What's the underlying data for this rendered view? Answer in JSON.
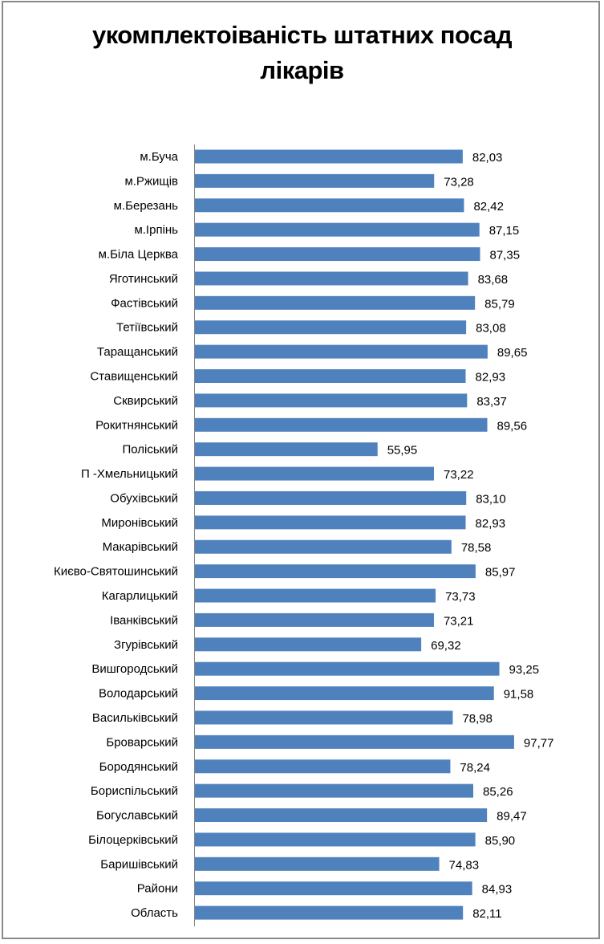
{
  "chart_data": {
    "type": "bar",
    "orientation": "horizontal",
    "title": "укомплектоіваність штатних посад лікарів",
    "title_lines": [
      "укомплектоіваність штатних посад",
      "лікарів"
    ],
    "xlabel": "",
    "ylabel": "",
    "xlim": [
      0,
      100
    ],
    "grid": false,
    "legend": "none",
    "bar_color": "#4f81bd",
    "categories": [
      "м.Буча",
      "м.Ржищів",
      "м.Березань",
      "м.Ірпінь",
      "м.Біла Церква",
      "Яготинський",
      "Фастівський",
      "Тетіївський",
      "Таращанський",
      "Ставищенський",
      "Сквирський",
      "Рокитнянський",
      "Поліський",
      "П -Хмельницький",
      "Обухівський",
      "Миронівський",
      "Макарівський",
      "Києво-Святошинський",
      "Кагарлицький",
      "Іванківський",
      "Згурівський",
      "Вишгородський",
      "Володарський",
      "Васильківський",
      "Броварський",
      "Бородянський",
      "Бориспільський",
      "Богуславський",
      "Білоцерківський",
      "Баришівський",
      "Райони",
      "Область"
    ],
    "values": [
      82.03,
      73.28,
      82.42,
      87.15,
      87.35,
      83.68,
      85.79,
      83.08,
      89.65,
      82.93,
      83.37,
      89.56,
      55.95,
      73.22,
      83.1,
      82.93,
      78.58,
      85.97,
      73.73,
      73.21,
      69.32,
      93.25,
      91.58,
      78.98,
      97.77,
      78.24,
      85.26,
      89.47,
      85.9,
      74.83,
      84.93,
      82.11
    ],
    "value_labels": [
      "82,03",
      "73,28",
      "82,42",
      "87,15",
      "87,35",
      "83,68",
      "85,79",
      "83,08",
      "89,65",
      "82,93",
      "83,37",
      "89,56",
      "55,95",
      "73,22",
      "83,10",
      "82,93",
      "78,58",
      "85,97",
      "73,73",
      "73,21",
      "69,32",
      "93,25",
      "91,58",
      "78,98",
      "97,77",
      "78,24",
      "85,26",
      "89,47",
      "85,90",
      "74,83",
      "84,93",
      "82,11"
    ]
  }
}
